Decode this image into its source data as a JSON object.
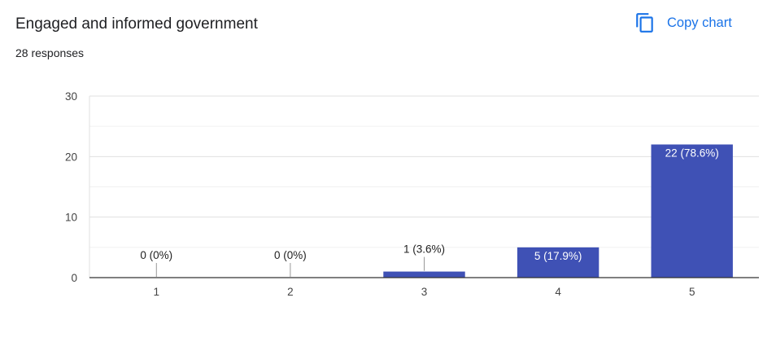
{
  "header": {
    "title": "Engaged and informed government",
    "responses": "28 responses",
    "copy_label": "Copy chart"
  },
  "colors": {
    "bar": "#3f51b5",
    "accent": "#1a73e8",
    "grid": "#ebebeb",
    "axis": "#333333"
  },
  "chart_data": {
    "type": "bar",
    "title": "Engaged and informed government",
    "categories": [
      "1",
      "2",
      "3",
      "4",
      "5"
    ],
    "values": [
      0,
      0,
      1,
      5,
      22
    ],
    "data_labels": [
      "0 (0%)",
      "0 (0%)",
      "1 (3.6%)",
      "5 (17.9%)",
      "22 (78.6%)"
    ],
    "ylim": [
      0,
      30
    ],
    "yticks": [
      0,
      10,
      20,
      30
    ],
    "grid": true,
    "legend": "none",
    "xlabel": "",
    "ylabel": ""
  }
}
